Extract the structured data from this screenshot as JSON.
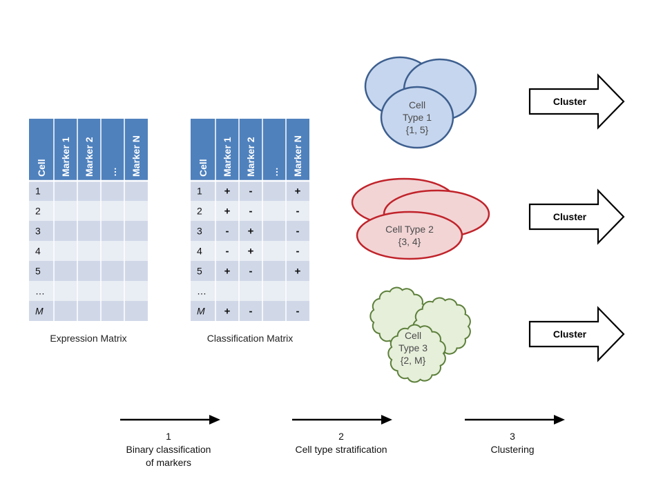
{
  "expression_matrix": {
    "caption": "Expression Matrix",
    "headers": [
      "Cell",
      "Marker 1",
      "Marker 2",
      "…",
      "Marker N"
    ],
    "rows": [
      "1",
      "2",
      "3",
      "4",
      "5",
      "…",
      "M"
    ]
  },
  "classification_matrix": {
    "caption": "Classification Matrix",
    "headers": [
      "Cell",
      "Marker 1",
      "Marker 2",
      "…",
      "Marker N"
    ],
    "rows": [
      {
        "cell": "1",
        "values": [
          "+",
          "-",
          "",
          "+"
        ]
      },
      {
        "cell": "2",
        "values": [
          "+",
          "-",
          "",
          "-"
        ]
      },
      {
        "cell": "3",
        "values": [
          "-",
          "+",
          "",
          "-"
        ]
      },
      {
        "cell": "4",
        "values": [
          "-",
          "+",
          "",
          "-"
        ]
      },
      {
        "cell": "5",
        "values": [
          "+",
          "-",
          "",
          "+"
        ]
      },
      {
        "cell": "…",
        "values": [
          "",
          "",
          "",
          ""
        ]
      },
      {
        "cell": "M",
        "values": [
          "+",
          "-",
          "",
          "-"
        ]
      }
    ]
  },
  "clusters": [
    {
      "lines": [
        "Cell",
        "Type 1",
        "{1, 5}"
      ],
      "shape": "circle",
      "fill": "#c6d6ee",
      "stroke": "#3d5f8f"
    },
    {
      "lines": [
        "Cell Type 2",
        "{3, 4}"
      ],
      "shape": "ellipse",
      "fill": "#f2d4d5",
      "stroke": "#c0232a"
    },
    {
      "lines": [
        "Cell",
        "Type 3",
        "{2, M}"
      ],
      "shape": "cloud",
      "fill": "#e6efda",
      "stroke": "#5c7f3a"
    }
  ],
  "cluster_arrows": [
    "Cluster",
    "Cluster",
    "Cluster"
  ],
  "steps": [
    {
      "number": "1",
      "lines": [
        "Binary classification",
        "of markers"
      ]
    },
    {
      "number": "2",
      "lines": [
        "Cell type stratification"
      ]
    },
    {
      "number": "3",
      "lines": [
        "Clustering"
      ]
    }
  ],
  "colors": {
    "header": "#4f81bd",
    "row_dark": "#d0d8e8",
    "row_light": "#e9edf4",
    "divider": "#ffffff"
  }
}
